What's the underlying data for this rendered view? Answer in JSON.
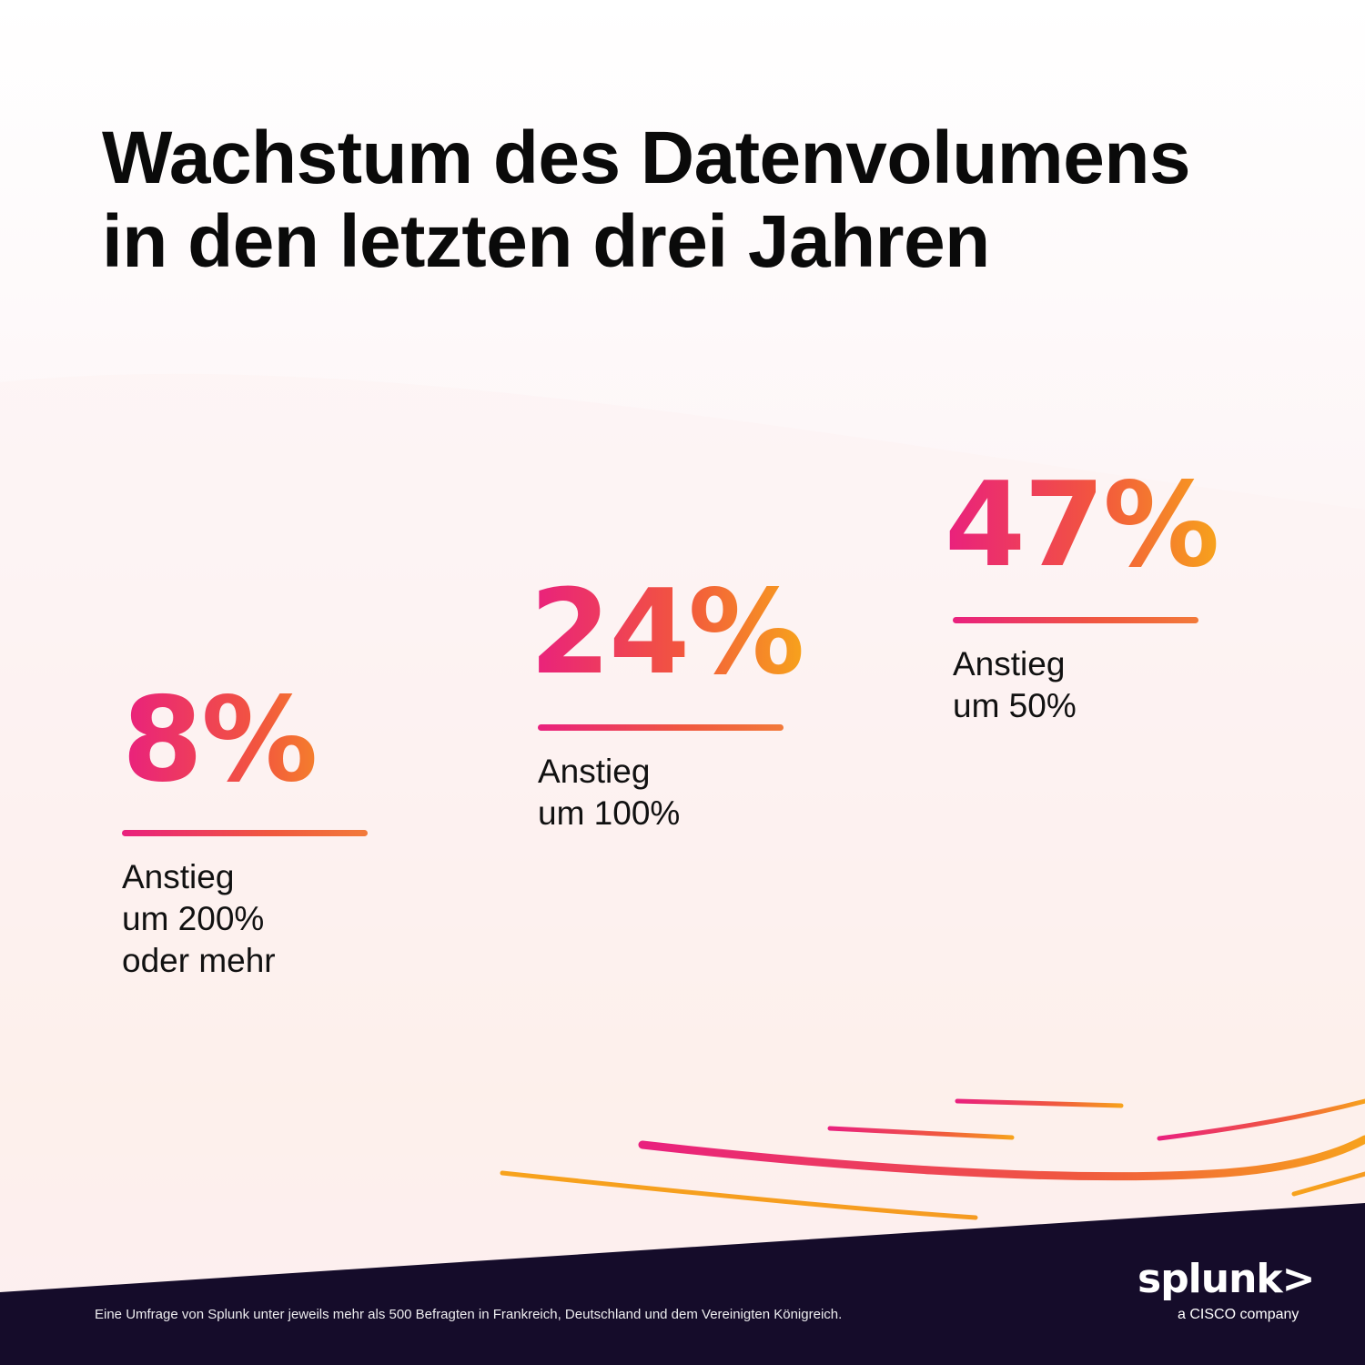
{
  "title": {
    "line1": "Wachstum des Datenvolumens",
    "line2": "in den letzten drei Jahren"
  },
  "chart_data": {
    "type": "bar",
    "title": "Wachstum des Datenvolumens in den letzten drei Jahren",
    "categories": [
      "Anstieg um 200% oder mehr",
      "Anstieg um 100%",
      "Anstieg um 50%"
    ],
    "values": [
      8,
      24,
      47
    ],
    "unit": "%"
  },
  "stats": [
    {
      "value_label": "8%",
      "label": "Anstieg\num 200%\noder mehr"
    },
    {
      "value_label": "24%",
      "label": "Anstieg\num 100%"
    },
    {
      "value_label": "47%",
      "label": "Anstieg\num 50%"
    }
  ],
  "footnote": "Eine Umfrage von Splunk unter jeweils mehr als 500 Befragten in Frankreich, Deutschland und dem Vereinigten Königreich.",
  "logo": {
    "wordmark": "splunk>",
    "tagline": "a CISCO company"
  },
  "colors": {
    "pink": "#e9207e",
    "orange": "#f7a21c",
    "dark_band": "#150c2a"
  }
}
